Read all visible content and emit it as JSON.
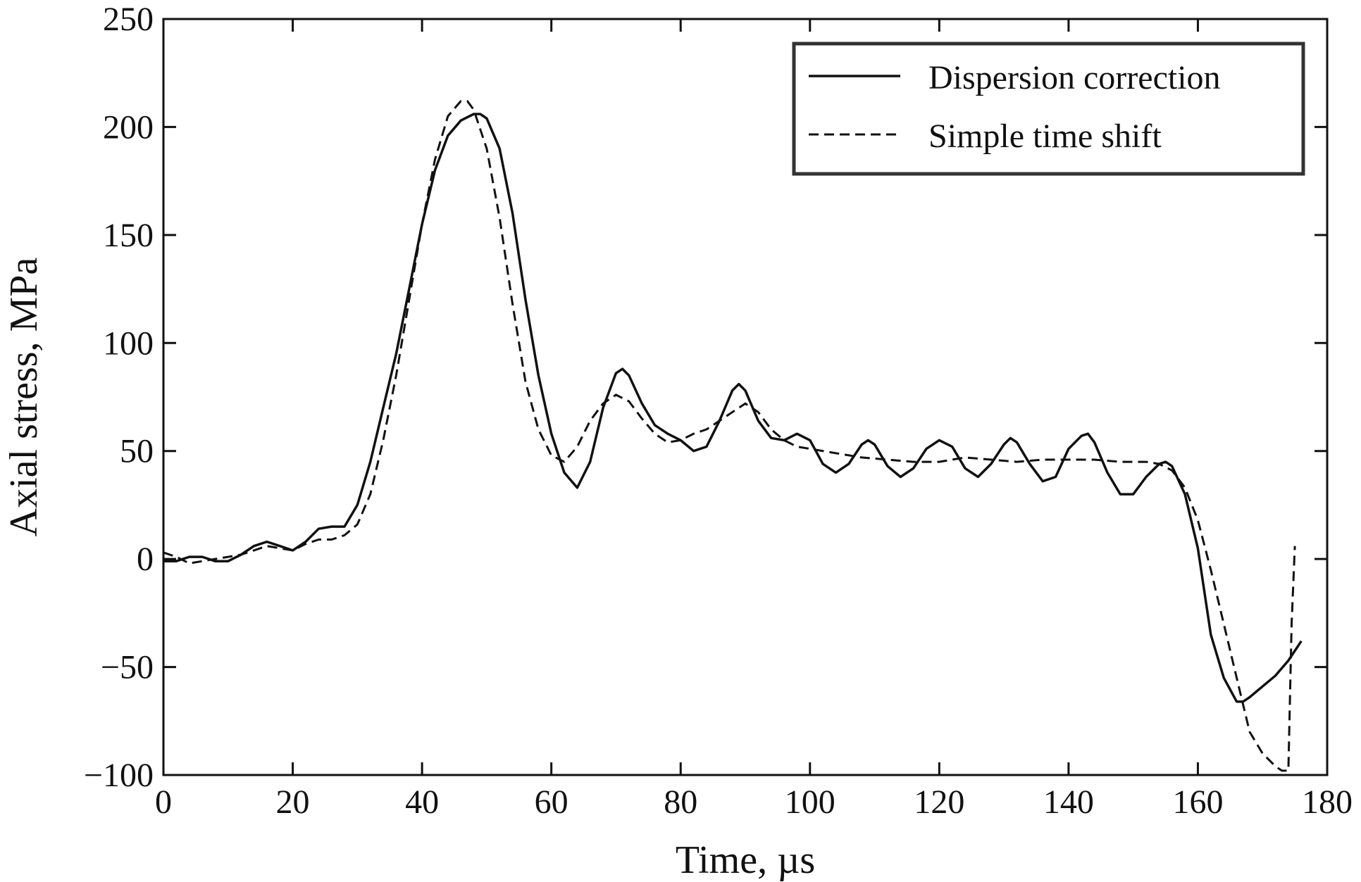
{
  "chart_data": {
    "type": "line",
    "title": "",
    "xlabel": "Time, µs",
    "ylabel": "Axial stress, MPa",
    "xlim": [
      0,
      180
    ],
    "ylim": [
      -100,
      250
    ],
    "xticks": [
      0,
      20,
      40,
      60,
      80,
      100,
      120,
      140,
      160,
      180
    ],
    "yticks": [
      -100,
      -50,
      0,
      50,
      100,
      150,
      200,
      250
    ],
    "xtick_labels": [
      "0",
      "20",
      "40",
      "60",
      "80",
      "100",
      "120",
      "140",
      "160",
      "180"
    ],
    "ytick_labels": [
      "−100",
      "−50",
      "0",
      "50",
      "100",
      "150",
      "200",
      "250"
    ],
    "grid": false,
    "legend_position": "top-right",
    "series": [
      {
        "name": "Dispersion correction",
        "style": "solid",
        "color": "#111111",
        "x": [
          0,
          2,
          4,
          6,
          8,
          10,
          12,
          14,
          16,
          18,
          20,
          22,
          24,
          26,
          28,
          30,
          32,
          34,
          36,
          38,
          40,
          42,
          44,
          46,
          48,
          49,
          50,
          52,
          54,
          56,
          58,
          60,
          62,
          64,
          66,
          68,
          70,
          71,
          72,
          74,
          76,
          78,
          80,
          82,
          84,
          86,
          88,
          89,
          90,
          92,
          94,
          96,
          98,
          100,
          102,
          104,
          106,
          108,
          109,
          110,
          112,
          114,
          116,
          118,
          120,
          122,
          124,
          126,
          128,
          130,
          131,
          132,
          134,
          136,
          138,
          140,
          142,
          143,
          144,
          146,
          148,
          150,
          152,
          154,
          155,
          156,
          158,
          160,
          162,
          164,
          166,
          167,
          168,
          170,
          172,
          174,
          176
        ],
        "values": [
          -1,
          -1,
          1,
          1,
          -1,
          -1,
          2,
          6,
          8,
          6,
          4,
          8,
          14,
          15,
          15,
          25,
          45,
          70,
          95,
          125,
          155,
          180,
          196,
          203,
          206,
          206,
          204,
          190,
          160,
          120,
          85,
          58,
          40,
          33,
          45,
          70,
          86,
          88,
          85,
          72,
          62,
          58,
          55,
          50,
          52,
          64,
          78,
          81,
          78,
          64,
          56,
          55,
          58,
          55,
          44,
          40,
          44,
          53,
          55,
          53,
          43,
          38,
          42,
          51,
          55,
          52,
          42,
          38,
          44,
          53,
          56,
          54,
          44,
          36,
          38,
          51,
          57,
          58,
          54,
          40,
          30,
          30,
          38,
          44,
          45,
          43,
          30,
          5,
          -35,
          -55,
          -66,
          -66,
          -64,
          -59,
          -54,
          -47,
          -38
        ]
      },
      {
        "name": "Simple time shift",
        "style": "dashed",
        "color": "#111111",
        "x": [
          0,
          2,
          4,
          6,
          8,
          10,
          12,
          14,
          16,
          18,
          20,
          22,
          24,
          26,
          28,
          30,
          32,
          34,
          36,
          38,
          40,
          42,
          44,
          46,
          47,
          48,
          50,
          52,
          54,
          56,
          58,
          60,
          62,
          64,
          66,
          68,
          70,
          72,
          74,
          76,
          78,
          80,
          82,
          84,
          86,
          88,
          90,
          92,
          94,
          96,
          98,
          100,
          104,
          108,
          112,
          116,
          120,
          124,
          128,
          132,
          136,
          140,
          144,
          148,
          152,
          154,
          156,
          158,
          160,
          162,
          164,
          166,
          168,
          170,
          172,
          173,
          174,
          174.5,
          175
        ],
        "values": [
          3,
          1,
          -2,
          -1,
          0,
          1,
          2,
          4,
          6,
          5,
          4,
          7,
          9,
          9,
          11,
          16,
          30,
          55,
          85,
          120,
          155,
          185,
          205,
          212,
          212,
          208,
          190,
          158,
          118,
          82,
          60,
          48,
          45,
          52,
          64,
          72,
          76,
          73,
          65,
          58,
          54,
          55,
          58,
          60,
          64,
          68,
          72,
          68,
          60,
          55,
          52,
          51,
          49,
          47,
          46,
          45,
          45,
          47,
          46,
          45,
          46,
          46,
          46,
          45,
          45,
          44,
          41,
          33,
          18,
          -5,
          -30,
          -55,
          -80,
          -90,
          -96,
          -98,
          -98,
          -30,
          6
        ]
      }
    ]
  }
}
